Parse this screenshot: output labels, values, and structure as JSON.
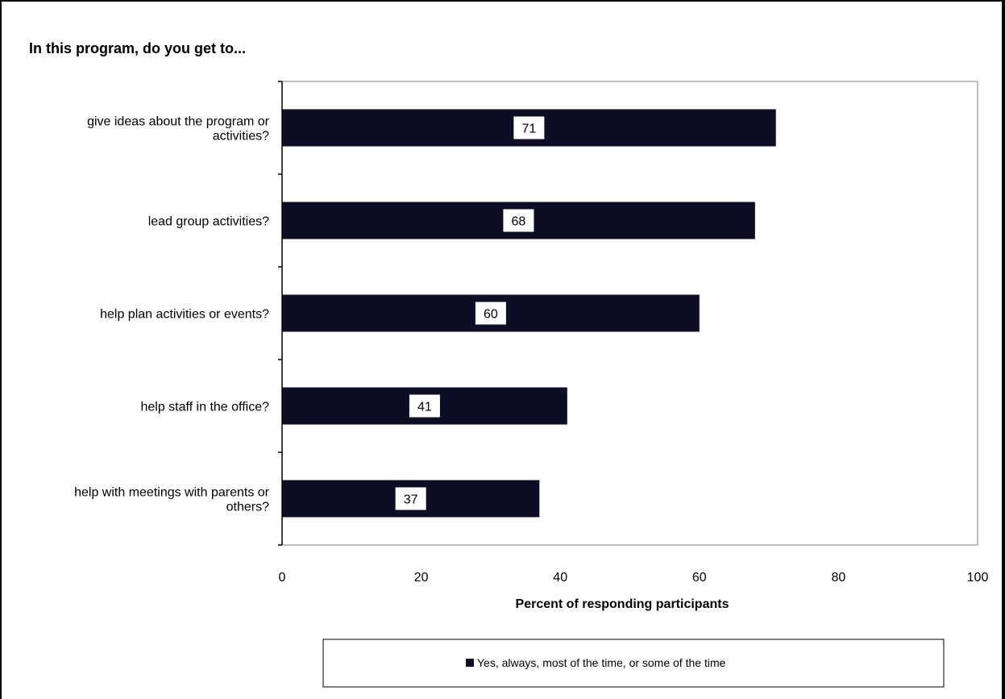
{
  "colors": {
    "bar": "#0d0d26",
    "frame": "#000000",
    "plot_border": "#808080",
    "label_bg": "#ffffff"
  },
  "chart_data": {
    "type": "bar",
    "orientation": "horizontal",
    "title": "In this program, do you get to...",
    "xlabel": "Percent of responding participants",
    "ylabel": "",
    "xlim": [
      0,
      100
    ],
    "xticks": [
      0,
      20,
      40,
      60,
      80,
      100
    ],
    "grid": false,
    "legend_position": "bottom",
    "categories": [
      [
        "give ideas about the program or",
        "activities?"
      ],
      [
        "lead group activities?"
      ],
      [
        "help plan activities or events?"
      ],
      [
        "help staff in the office?"
      ],
      [
        "help with meetings with parents or",
        "others?"
      ]
    ],
    "series": [
      {
        "name": "Yes, always, most of the time, or some of the time",
        "values": [
          71,
          68,
          60,
          41,
          37
        ]
      }
    ]
  }
}
